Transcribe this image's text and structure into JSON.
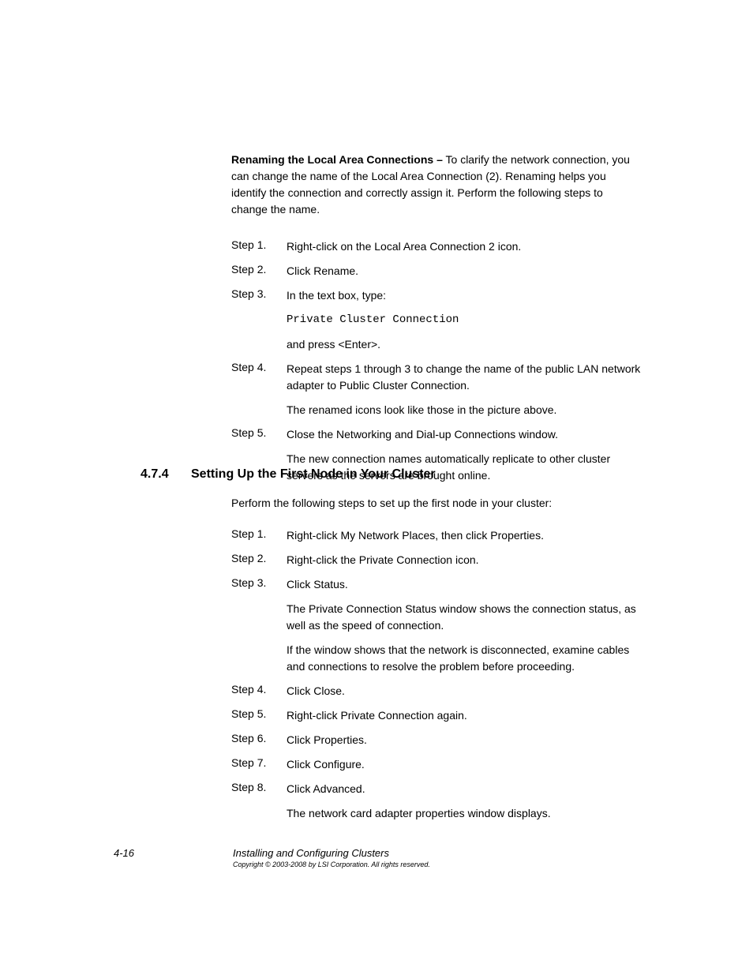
{
  "intro": {
    "bold": "Renaming the Local Area Connections  –",
    "rest": " To clarify the network connection, you can change the name of the Local Area Connection (2). Renaming helps you identify the connection and correctly assign it. Perform the following steps to change the name."
  },
  "stepsA": [
    {
      "label": "Step 1.",
      "lines": [
        "Right-click on the Local Area Connection 2 icon."
      ]
    },
    {
      "label": "Step 2.",
      "lines": [
        "Click Rename."
      ]
    },
    {
      "label": "Step 3.",
      "lines": [
        "In the text box, type:"
      ],
      "mono": "Private Cluster Connection",
      "after": [
        "and press <Enter>."
      ]
    },
    {
      "label": "Step 4.",
      "lines": [
        "Repeat steps 1 through 3 to change the name of the public LAN network adapter to Public Cluster Connection."
      ],
      "after": [
        "The renamed icons look like those in the picture above."
      ]
    },
    {
      "label": "Step 5.",
      "lines": [
        "Close the Networking and Dial-up Connections window."
      ],
      "after": [
        "The new connection names automatically replicate to other cluster servers as the servers are brought online."
      ]
    }
  ],
  "section": {
    "num": "4.7.4",
    "title": "Setting Up the First Node in Your Cluster"
  },
  "para2": "Perform the following steps to set up the first node in your cluster:",
  "stepsB": [
    {
      "label": "Step 1.",
      "lines": [
        "Right-click My Network Places, then click Properties."
      ]
    },
    {
      "label": "Step 2.",
      "lines": [
        "Right-click the Private Connection icon."
      ]
    },
    {
      "label": "Step 3.",
      "lines": [
        "Click Status."
      ],
      "after": [
        "The Private Connection Status window shows the connection status, as well as the speed of connection.",
        "If the window shows that the network is disconnected, examine cables and connections to resolve the problem before proceeding."
      ]
    },
    {
      "label": "Step 4.",
      "lines": [
        "Click Close."
      ]
    },
    {
      "label": "Step 5.",
      "lines": [
        "Right-click Private Connection again."
      ]
    },
    {
      "label": "Step 6.",
      "lines": [
        "Click Properties."
      ]
    },
    {
      "label": "Step 7.",
      "lines": [
        "Click Configure."
      ]
    },
    {
      "label": "Step 8.",
      "lines": [
        "Click Advanced."
      ],
      "after": [
        "The network card adapter properties window displays."
      ]
    }
  ],
  "footer": {
    "pagenum": "4-16",
    "title": "Installing and Configuring Clusters",
    "copy": "Copyright © 2003-2008 by LSI Corporation. All rights reserved."
  }
}
